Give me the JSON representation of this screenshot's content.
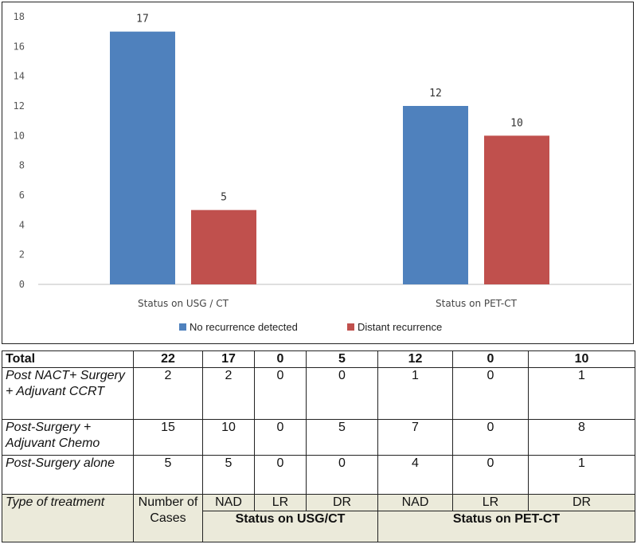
{
  "chart_data": {
    "type": "bar",
    "categories": [
      "Status on USG / CT",
      "Status on PET-CT"
    ],
    "series": [
      {
        "name": "No recurrence detected",
        "color": "#4f81bd",
        "values": [
          17,
          12
        ]
      },
      {
        "name": "Distant recurrence",
        "color": "#c0504d",
        "values": [
          5,
          10
        ]
      }
    ],
    "ylim": [
      0,
      18
    ],
    "yticks": [
      0,
      2,
      4,
      6,
      8,
      10,
      12,
      14,
      16,
      18
    ],
    "legend_position": "bottom",
    "grid": false
  },
  "table": {
    "total": {
      "label": "Total",
      "values": [
        "22",
        "17",
        "0",
        "5",
        "12",
        "0",
        "10"
      ]
    },
    "rows": [
      {
        "label": "Post NACT+ Surgery + Adjuvant CCRT",
        "values": [
          "2",
          "2",
          "0",
          "0",
          "1",
          "0",
          "1"
        ]
      },
      {
        "label": "Post-Surgery + Adjuvant Chemo",
        "values": [
          "15",
          "10",
          "0",
          "5",
          "7",
          "0",
          "8"
        ]
      },
      {
        "label": "Post-Surgery alone",
        "values": [
          "5",
          "5",
          "0",
          "0",
          "4",
          "0",
          "1"
        ]
      }
    ],
    "header": {
      "type_label": "Type of treatment",
      "cases_label": "Number of Cases",
      "sub_labels": [
        "NAD",
        "LR",
        "DR",
        "NAD",
        "LR",
        "DR"
      ],
      "group_usg": "Status on USG/CT",
      "group_pet": "Status on PET-CT"
    }
  }
}
